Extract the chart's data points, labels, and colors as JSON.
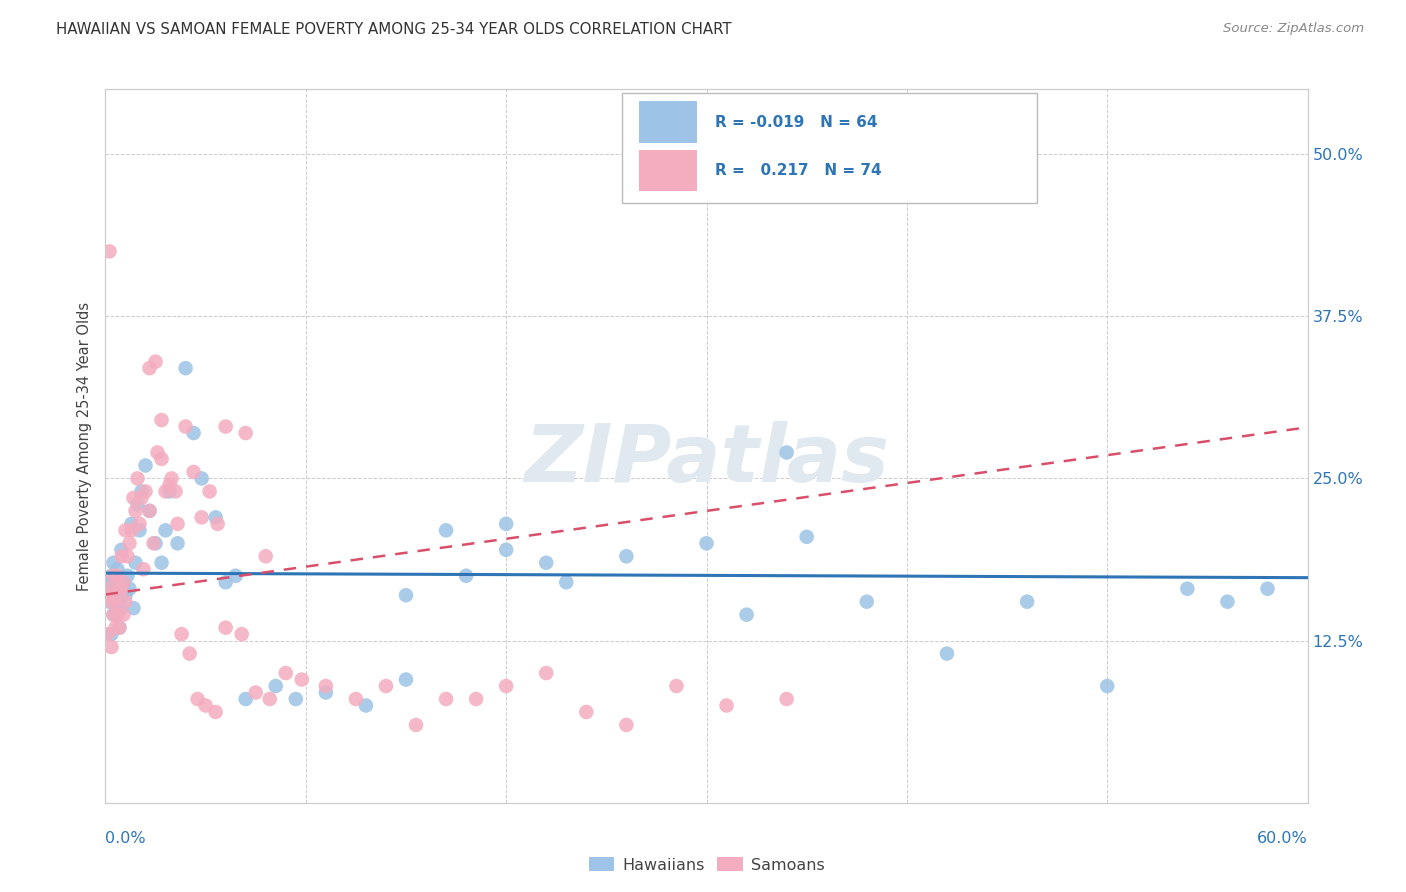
{
  "title": "HAWAIIAN VS SAMOAN FEMALE POVERTY AMONG 25-34 YEAR OLDS CORRELATION CHART",
  "source": "Source: ZipAtlas.com",
  "ylabel": "Female Poverty Among 25-34 Year Olds",
  "bottom_legend1": "Hawaiians",
  "bottom_legend2": "Samoans",
  "hawaiian_color": "#9DC3E6",
  "samoan_color": "#F4ACBF",
  "hawaiian_line_color": "#2E75B6",
  "samoan_line_color": "#D94F6A",
  "watermark": "ZIPatlas",
  "background_color": "#FFFFFF",
  "grid_color": "#CCCCCC",
  "hawaiian_R": -0.019,
  "hawaiian_N": 64,
  "samoan_R": 0.217,
  "samoan_N": 74,
  "xlim": [
    0.0,
    0.6
  ],
  "ylim": [
    0.0,
    0.55
  ],
  "yticks": [
    0.125,
    0.25,
    0.375,
    0.5
  ],
  "ytick_labels": [
    "12.5%",
    "25.0%",
    "37.5%",
    "50.0%"
  ],
  "hawaiian_x": [
    0.001,
    0.002,
    0.002,
    0.003,
    0.003,
    0.004,
    0.004,
    0.005,
    0.005,
    0.006,
    0.006,
    0.007,
    0.007,
    0.008,
    0.008,
    0.009,
    0.009,
    0.01,
    0.011,
    0.012,
    0.013,
    0.014,
    0.015,
    0.016,
    0.017,
    0.018,
    0.02,
    0.022,
    0.025,
    0.028,
    0.03,
    0.032,
    0.036,
    0.04,
    0.044,
    0.048,
    0.055,
    0.06,
    0.065,
    0.07,
    0.085,
    0.095,
    0.11,
    0.13,
    0.15,
    0.17,
    0.2,
    0.23,
    0.26,
    0.3,
    0.34,
    0.38,
    0.42,
    0.46,
    0.5,
    0.54,
    0.56,
    0.58,
    0.32,
    0.35,
    0.15,
    0.18,
    0.2,
    0.22
  ],
  "hawaiian_y": [
    0.165,
    0.155,
    0.17,
    0.175,
    0.13,
    0.185,
    0.145,
    0.165,
    0.175,
    0.155,
    0.18,
    0.16,
    0.135,
    0.195,
    0.15,
    0.17,
    0.165,
    0.16,
    0.175,
    0.165,
    0.215,
    0.15,
    0.185,
    0.23,
    0.21,
    0.24,
    0.26,
    0.225,
    0.2,
    0.185,
    0.21,
    0.24,
    0.2,
    0.335,
    0.285,
    0.25,
    0.22,
    0.17,
    0.175,
    0.08,
    0.09,
    0.08,
    0.085,
    0.075,
    0.095,
    0.21,
    0.195,
    0.17,
    0.19,
    0.2,
    0.27,
    0.155,
    0.115,
    0.155,
    0.09,
    0.165,
    0.155,
    0.165,
    0.145,
    0.205,
    0.16,
    0.175,
    0.215,
    0.185
  ],
  "samoan_x": [
    0.001,
    0.001,
    0.002,
    0.002,
    0.003,
    0.003,
    0.004,
    0.004,
    0.005,
    0.005,
    0.006,
    0.006,
    0.007,
    0.007,
    0.008,
    0.008,
    0.009,
    0.009,
    0.01,
    0.01,
    0.011,
    0.012,
    0.013,
    0.014,
    0.015,
    0.016,
    0.017,
    0.018,
    0.019,
    0.02,
    0.022,
    0.024,
    0.026,
    0.028,
    0.03,
    0.033,
    0.036,
    0.04,
    0.044,
    0.048,
    0.052,
    0.056,
    0.06,
    0.068,
    0.075,
    0.082,
    0.09,
    0.098,
    0.11,
    0.125,
    0.14,
    0.155,
    0.17,
    0.185,
    0.2,
    0.22,
    0.24,
    0.26,
    0.285,
    0.31,
    0.34,
    0.06,
    0.07,
    0.08,
    0.022,
    0.025,
    0.028,
    0.032,
    0.035,
    0.038,
    0.042,
    0.046,
    0.05,
    0.055
  ],
  "samoan_y": [
    0.16,
    0.13,
    0.425,
    0.165,
    0.155,
    0.12,
    0.145,
    0.175,
    0.135,
    0.155,
    0.175,
    0.145,
    0.165,
    0.135,
    0.19,
    0.165,
    0.17,
    0.145,
    0.155,
    0.21,
    0.19,
    0.2,
    0.21,
    0.235,
    0.225,
    0.25,
    0.215,
    0.235,
    0.18,
    0.24,
    0.225,
    0.2,
    0.27,
    0.265,
    0.24,
    0.25,
    0.215,
    0.29,
    0.255,
    0.22,
    0.24,
    0.215,
    0.135,
    0.13,
    0.085,
    0.08,
    0.1,
    0.095,
    0.09,
    0.08,
    0.09,
    0.06,
    0.08,
    0.08,
    0.09,
    0.1,
    0.07,
    0.06,
    0.09,
    0.075,
    0.08,
    0.29,
    0.285,
    0.19,
    0.335,
    0.34,
    0.295,
    0.245,
    0.24,
    0.13,
    0.115,
    0.08,
    0.075,
    0.07
  ]
}
